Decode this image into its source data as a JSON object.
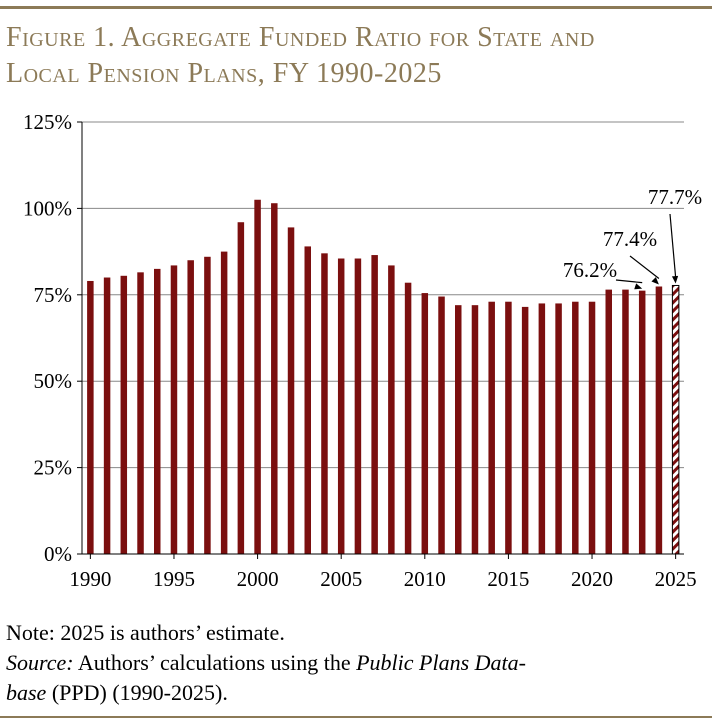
{
  "figure_title_line1": "Figure 1. Aggregate Funded Ratio for State and",
  "figure_title_line2": "Local Pension Plans, FY 1990-2025",
  "colors": {
    "bar": "#7b0f0f",
    "accent": "#8c7a57",
    "grid": "#888888"
  },
  "note": "Note: 2025 is authors’ estimate.",
  "source": {
    "label": "Source:",
    "text1": " Authors’ calculations using the ",
    "italic_db": "Public Plans Data-",
    "italic_db2": "base",
    "text2": " (PPD) (1990-2025)."
  },
  "chart_data": {
    "type": "bar",
    "title": "Aggregate Funded Ratio for State and Local Pension Plans, FY 1990-2025",
    "xlabel": "",
    "ylabel": "",
    "ylim": [
      0,
      125
    ],
    "yticks": [
      0,
      25,
      50,
      75,
      100,
      125
    ],
    "ytick_labels": [
      "0%",
      "25%",
      "50%",
      "75%",
      "100%",
      "125%"
    ],
    "xtick_labels": [
      "1990",
      "1995",
      "2000",
      "2005",
      "2010",
      "2015",
      "2020",
      "2025"
    ],
    "categories": [
      1990,
      1991,
      1992,
      1993,
      1994,
      1995,
      1996,
      1997,
      1998,
      1999,
      2000,
      2001,
      2002,
      2003,
      2004,
      2005,
      2006,
      2007,
      2008,
      2009,
      2010,
      2011,
      2012,
      2013,
      2014,
      2015,
      2016,
      2017,
      2018,
      2019,
      2020,
      2021,
      2022,
      2023,
      2024,
      2025
    ],
    "values": [
      79.0,
      80.0,
      80.5,
      81.5,
      82.5,
      83.5,
      85.0,
      86.0,
      87.5,
      96.0,
      102.5,
      101.5,
      94.5,
      89.0,
      87.0,
      85.5,
      85.5,
      86.5,
      83.5,
      78.5,
      75.5,
      74.5,
      72.0,
      72.0,
      73.0,
      73.0,
      71.5,
      72.5,
      72.5,
      73.0,
      73.0,
      76.5,
      76.5,
      76.2,
      77.4,
      77.7
    ],
    "estimated": [
      2025
    ],
    "grid": true,
    "annotations": [
      {
        "label": "76.2%",
        "year": 2023
      },
      {
        "label": "77.4%",
        "year": 2024
      },
      {
        "label": "77.7%",
        "year": 2025
      }
    ]
  }
}
